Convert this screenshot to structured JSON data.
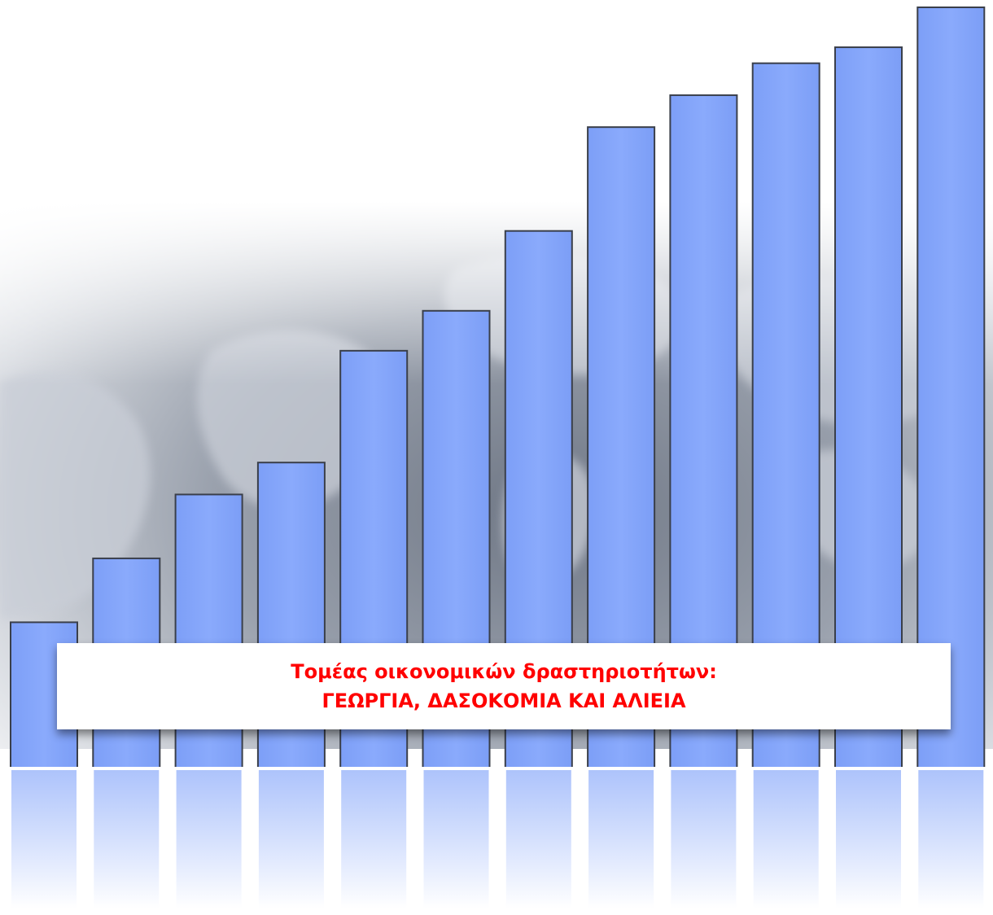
{
  "caption": {
    "line1": "Τομέας οικονομικών δραστηριοτήτων:",
    "line2": "ΓΕΩΡΓΙΑ, ΔΑΣΟΚΟΜΙΑ ΚΑΙ ΑΛΙΕΙΑ"
  },
  "graphic": {
    "type": "bar",
    "values": [
      18,
      26,
      34,
      38,
      52,
      57,
      67,
      80,
      84,
      88,
      90,
      95
    ],
    "bar_color": "#84a6fb",
    "bar_edge_color": "#3a3f4a",
    "caption_color": "#ff0000",
    "background_image": "world-map-grey"
  }
}
